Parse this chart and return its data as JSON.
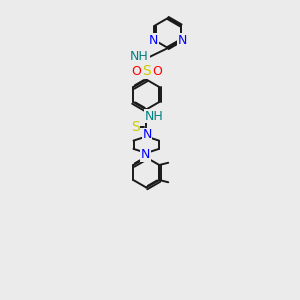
{
  "background_color": "#ebebeb",
  "bond_color": "#1a1a1a",
  "nitrogen_color": "#0000ff",
  "oxygen_color": "#ff0000",
  "sulfur_thio_color": "#cccc00",
  "sulfur_so2_color": "#cccc00",
  "hydrogen_color": "#008080",
  "figsize": [
    3.0,
    3.0
  ],
  "dpi": 100,
  "xlim": [
    0,
    10
  ],
  "ylim": [
    0,
    20
  ]
}
